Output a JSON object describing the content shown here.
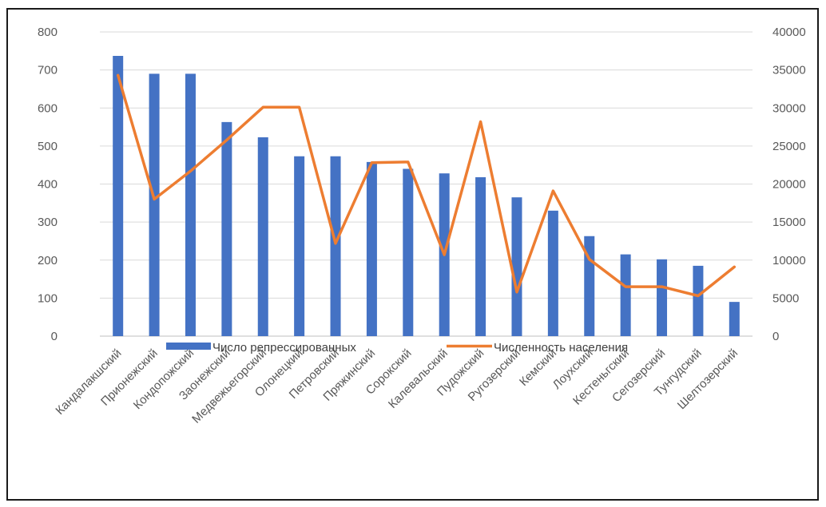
{
  "chart_data": {
    "type": "bar",
    "categories": [
      "Кандалакшский",
      "Прионежский",
      "Кондопожский",
      "Заонежский",
      "Медвежьегорский",
      "Олонецкий",
      "Петровский",
      "Пряжинский",
      "Сорокский",
      "Калевальский",
      "Пудожский",
      "Ругозерский",
      "Кемский",
      "Лоухский",
      "Кестеньгский",
      "Сегозерский",
      "Тунгудский",
      "Шелтозерский"
    ],
    "series": [
      {
        "name": "Число репрессированных",
        "type": "bar",
        "axis": "left",
        "color": "#4472C4",
        "values": [
          737,
          690,
          690,
          563,
          523,
          473,
          473,
          458,
          440,
          428,
          418,
          365,
          330,
          263,
          215,
          202,
          185,
          90
        ]
      },
      {
        "name": "Численность населения",
        "type": "line",
        "axis": "right",
        "color": "#ED7D31",
        "values": [
          34300,
          18000,
          21700,
          25800,
          30100,
          30100,
          12200,
          22800,
          22900,
          10700,
          28200,
          5800,
          19100,
          10100,
          6500,
          6500,
          5300,
          9100
        ]
      }
    ],
    "y_left": {
      "min": 0,
      "max": 800,
      "ticks": [
        "0",
        "100",
        "200",
        "300",
        "400",
        "500",
        "600",
        "700",
        "800"
      ]
    },
    "y_right": {
      "min": 0,
      "max": 40000,
      "ticks": [
        "0",
        "5000",
        "10000",
        "15000",
        "20000",
        "25000",
        "30000",
        "35000",
        "40000"
      ]
    },
    "grid": true,
    "legend_position": "bottom"
  }
}
